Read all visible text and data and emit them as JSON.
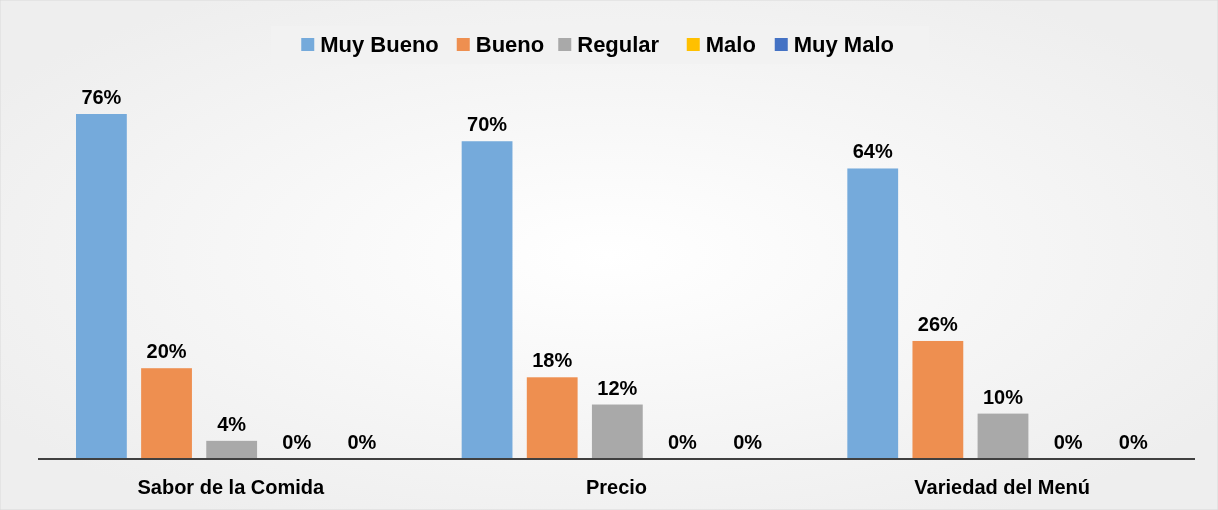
{
  "chart_data": {
    "type": "bar",
    "categories": [
      "Sabor de la Comida",
      "Precio",
      "Variedad del Menú"
    ],
    "legend": "top",
    "series": [
      {
        "name": "Muy Bueno",
        "color": "#75aadb",
        "values": [
          76,
          70,
          64
        ],
        "value_labels": [
          "76%",
          "70%",
          "64%"
        ]
      },
      {
        "name": "Bueno",
        "color": "#ee8f50",
        "values": [
          20,
          18,
          26
        ],
        "value_labels": [
          "20%",
          "18%",
          "26%"
        ]
      },
      {
        "name": "Regular",
        "color": "#a9a9a9",
        "values": [
          4,
          12,
          10
        ],
        "value_labels": [
          "4%",
          "12%",
          "10%"
        ]
      },
      {
        "name": "Malo",
        "color": "#ffc000",
        "values": [
          0,
          0,
          0
        ],
        "value_labels": [
          "0%",
          "0%",
          "0%"
        ]
      },
      {
        "name": "Muy Malo",
        "color": "#4472c4",
        "values": [
          0,
          0,
          0
        ],
        "value_labels": [
          "0%",
          "0%",
          "0%"
        ]
      }
    ]
  }
}
